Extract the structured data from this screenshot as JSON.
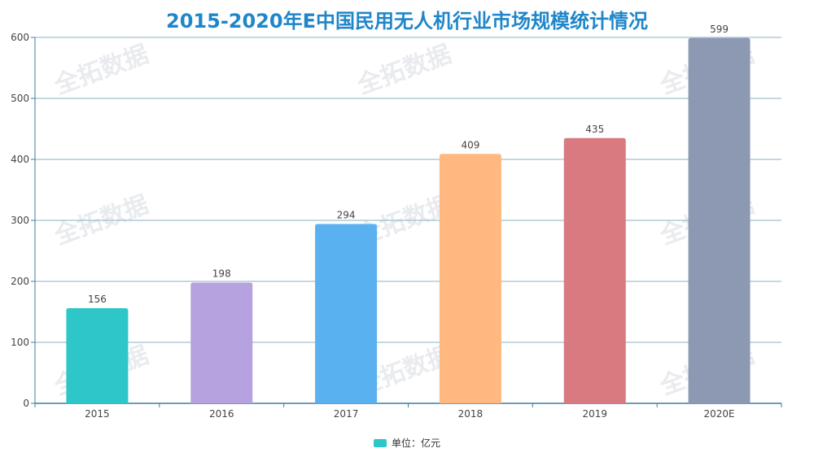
{
  "chart_data": {
    "type": "bar",
    "title": "2015-2020年E中国民用无人机行业市场规模统计情况",
    "categories": [
      "2015",
      "2016",
      "2017",
      "2018",
      "2019",
      "2020E"
    ],
    "values": [
      156,
      198,
      294,
      409,
      435,
      599
    ],
    "colors": [
      "#2ec7c9",
      "#b6a2de",
      "#5ab1ef",
      "#ffb980",
      "#d87a80",
      "#8d98b3"
    ],
    "ylim": [
      0,
      600
    ],
    "yticks": [
      0,
      100,
      200,
      300,
      400,
      500,
      600
    ],
    "grid": true,
    "legend": {
      "position": "bottom-center",
      "label": "单位：亿元",
      "color": "#2ec7c9"
    },
    "watermark": "全拓数据"
  }
}
